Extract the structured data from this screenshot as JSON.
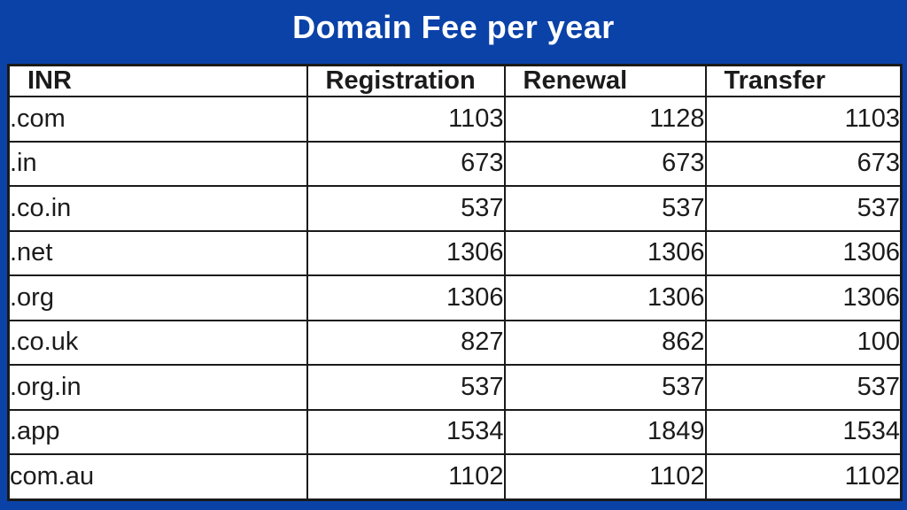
{
  "title": "Domain Fee per year",
  "colors": {
    "background_blue": "#0a42a8",
    "table_background": "#ffffff",
    "grid_border": "#1a1a1a",
    "title_text": "#ffffff",
    "cell_text": "#1b1b1b"
  },
  "chart_data": {
    "type": "table",
    "title": "Domain Fee per year",
    "columns": [
      "INR",
      "Registration",
      "Renewal",
      "Transfer"
    ],
    "rows": [
      [
        ".com",
        1103,
        1128,
        1103
      ],
      [
        ".in",
        673,
        673,
        673
      ],
      [
        ".co.in",
        537,
        537,
        537
      ],
      [
        ".net",
        1306,
        1306,
        1306
      ],
      [
        ".org",
        1306,
        1306,
        1306
      ],
      [
        ".co.uk",
        827,
        862,
        100
      ],
      [
        ".org.in",
        537,
        537,
        537
      ],
      [
        ".app",
        1534,
        1849,
        1534
      ],
      [
        "com.au",
        1102,
        1102,
        1102
      ]
    ],
    "layout": {
      "currency": "INR",
      "first_column_align": "left",
      "value_columns_align": "right",
      "grid": true,
      "legend": false
    }
  }
}
